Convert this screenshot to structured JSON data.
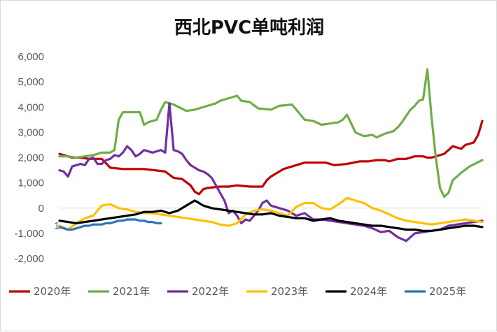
{
  "chart_data": {
    "type": "line",
    "title": "西北PVC单吨利润",
    "xlabel": "",
    "ylabel": "",
    "ylim": [
      -2000,
      6000
    ],
    "yticks": [
      -2000,
      -1000,
      0,
      1000,
      2000,
      3000,
      4000,
      5000,
      6000
    ],
    "ytick_labels": [
      "-2,000",
      "-1,000",
      "0",
      "1,000",
      "2,000",
      "3,000",
      "4,000",
      "5,000",
      "6,000"
    ],
    "x_label_note": "1",
    "grid": false,
    "legend_position": "bottom",
    "x_domain": [
      0,
      100
    ],
    "series": [
      {
        "name": "2020年",
        "color": "#c00000",
        "x": [
          0,
          3,
          5,
          7,
          10,
          12,
          15,
          18,
          20,
          25,
          27,
          29,
          31,
          32,
          33,
          34,
          35,
          38,
          40,
          42,
          45,
          48,
          49,
          50,
          53,
          56,
          58,
          60,
          63,
          65,
          68,
          71,
          73,
          75,
          77,
          78,
          79,
          80,
          81,
          82,
          84,
          86,
          87,
          88,
          89,
          90,
          91,
          92,
          93,
          94,
          95,
          96,
          97,
          98,
          99,
          100
        ],
        "y": [
          2150,
          2000,
          2000,
          1950,
          1950,
          1600,
          1550,
          1550,
          1550,
          1450,
          1200,
          1150,
          900,
          650,
          550,
          750,
          800,
          850,
          850,
          900,
          850,
          850,
          1100,
          1250,
          1550,
          1700,
          1800,
          1800,
          1800,
          1700,
          1750,
          1850,
          1850,
          1900,
          1900,
          1850,
          1900,
          1950,
          1950,
          1950,
          2050,
          2050,
          2000,
          2000,
          2050,
          2100,
          2150,
          2300,
          2450,
          2400,
          2350,
          2500,
          2550,
          2600,
          2900,
          3450
        ]
      },
      {
        "name": "2021年",
        "color": "#70ad47",
        "x": [
          0,
          2,
          4,
          6,
          8,
          10,
          12,
          13,
          14,
          15,
          17,
          19,
          20,
          21,
          23,
          24,
          25,
          27,
          30,
          32,
          35,
          37,
          38,
          40,
          42,
          43,
          45,
          47,
          50,
          52,
          55,
          57,
          58,
          60,
          62,
          64,
          66,
          67,
          68,
          70,
          72,
          74,
          75,
          77,
          79,
          80,
          81,
          82,
          83,
          84,
          85,
          86,
          87,
          88,
          89,
          90,
          91,
          92,
          93,
          95,
          97,
          100
        ],
        "y": [
          2050,
          2050,
          2000,
          2050,
          2100,
          2200,
          2200,
          2300,
          3500,
          3800,
          3800,
          3800,
          3300,
          3400,
          3500,
          3900,
          4200,
          4100,
          3850,
          3900,
          4050,
          4150,
          4250,
          4350,
          4450,
          4250,
          4200,
          3950,
          3900,
          4050,
          4100,
          3700,
          3500,
          3450,
          3300,
          3350,
          3400,
          3500,
          3700,
          3000,
          2850,
          2900,
          2800,
          2950,
          3050,
          3200,
          3400,
          3650,
          3900,
          4050,
          4250,
          4300,
          5500,
          3600,
          2000,
          800,
          450,
          600,
          1100,
          1400,
          1650,
          1900
        ]
      },
      {
        "name": "2022年",
        "color": "#7030a0",
        "x": [
          0,
          1,
          2,
          3,
          4,
          5,
          6,
          7,
          8,
          9,
          10,
          11,
          12,
          13,
          14,
          15,
          16,
          17,
          18,
          19,
          20,
          21,
          22,
          23,
          24,
          25,
          26,
          27,
          28,
          29,
          30,
          31,
          32,
          33,
          34,
          35,
          36,
          37,
          38,
          39,
          40,
          41,
          42,
          43,
          44,
          45,
          46,
          47,
          48,
          49,
          50,
          52,
          54,
          56,
          58,
          60,
          62,
          64,
          66,
          68,
          70,
          72,
          74,
          76,
          78,
          80,
          82,
          84,
          86,
          88,
          90,
          92,
          94,
          96,
          98,
          100
        ],
        "y": [
          1500,
          1450,
          1250,
          1650,
          1700,
          1750,
          1700,
          1950,
          2000,
          1750,
          1750,
          1900,
          1950,
          2100,
          2050,
          2200,
          2450,
          2300,
          2050,
          2150,
          2300,
          2250,
          2200,
          2250,
          2300,
          2200,
          4150,
          2300,
          2250,
          2150,
          1900,
          1700,
          1600,
          1500,
          1450,
          1350,
          1200,
          900,
          600,
          300,
          -200,
          -100,
          -300,
          -600,
          -450,
          -500,
          -300,
          -100,
          200,
          300,
          100,
          0,
          -100,
          -300,
          -200,
          -450,
          -450,
          -500,
          -550,
          -600,
          -650,
          -700,
          -800,
          -950,
          -900,
          -1150,
          -1300,
          -1000,
          -950,
          -900,
          -850,
          -700,
          -650,
          -600,
          -550,
          -500
        ]
      },
      {
        "name": "2023年",
        "color": "#ffc000",
        "x": [
          0,
          2,
          4,
          6,
          8,
          10,
          12,
          14,
          16,
          18,
          20,
          22,
          24,
          26,
          28,
          30,
          32,
          34,
          36,
          38,
          40,
          42,
          44,
          46,
          48,
          50,
          52,
          54,
          56,
          58,
          60,
          62,
          64,
          66,
          68,
          70,
          72,
          74,
          76,
          78,
          80,
          82,
          84,
          86,
          88,
          90,
          92,
          94,
          96,
          98,
          100
        ],
        "y": [
          -700,
          -850,
          -600,
          -400,
          -300,
          100,
          150,
          0,
          -50,
          -150,
          -200,
          -200,
          -250,
          -300,
          -350,
          -400,
          -450,
          -500,
          -550,
          -650,
          -700,
          -600,
          -250,
          -100,
          -50,
          -100,
          -200,
          -300,
          50,
          200,
          200,
          0,
          -50,
          150,
          400,
          300,
          200,
          0,
          -100,
          -250,
          -400,
          -500,
          -550,
          -600,
          -650,
          -600,
          -550,
          -500,
          -450,
          -500,
          -550
        ]
      },
      {
        "name": "2024年",
        "color": "#000000",
        "x": [
          0,
          2,
          4,
          6,
          8,
          10,
          12,
          14,
          16,
          18,
          20,
          22,
          24,
          26,
          28,
          30,
          32,
          34,
          36,
          38,
          40,
          42,
          44,
          46,
          48,
          50,
          52,
          54,
          56,
          58,
          60,
          62,
          64,
          66,
          68,
          70,
          72,
          74,
          76,
          78,
          80,
          82,
          84,
          86,
          88,
          90,
          92,
          94,
          96,
          98,
          100
        ],
        "y": [
          -500,
          -550,
          -600,
          -550,
          -500,
          -450,
          -400,
          -350,
          -300,
          -250,
          -150,
          -150,
          -100,
          -200,
          -100,
          100,
          300,
          100,
          0,
          -50,
          -100,
          -150,
          -200,
          -250,
          -250,
          -200,
          -300,
          -350,
          -400,
          -400,
          -500,
          -450,
          -400,
          -500,
          -550,
          -600,
          -650,
          -700,
          -700,
          -750,
          -800,
          -850,
          -850,
          -900,
          -900,
          -850,
          -800,
          -750,
          -700,
          -700,
          -750
        ]
      },
      {
        "name": "2025年",
        "color": "#2e75b6",
        "x": [
          0,
          1,
          2,
          3,
          4,
          5,
          6,
          7,
          8,
          9,
          10,
          11,
          12,
          13,
          14,
          15,
          16,
          17,
          18,
          19,
          20,
          21,
          22,
          23,
          24
        ],
        "y": [
          -750,
          -800,
          -850,
          -850,
          -800,
          -750,
          -700,
          -700,
          -650,
          -650,
          -650,
          -600,
          -600,
          -550,
          -500,
          -500,
          -450,
          -450,
          -450,
          -500,
          -500,
          -550,
          -550,
          -600,
          -600
        ]
      }
    ]
  }
}
